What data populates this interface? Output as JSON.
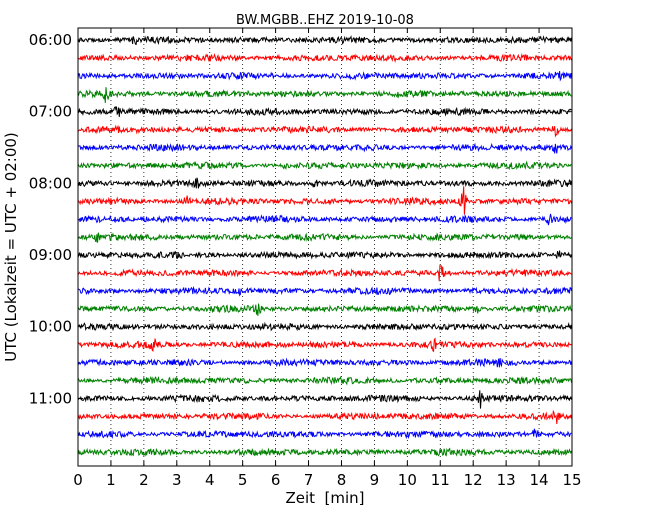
{
  "chart_data": {
    "type": "line",
    "title": "BW.MGBB..EHZ 2019-10-08",
    "xlabel": "Zeit  [min]",
    "ylabel": "UTC (Lokalzeit = UTC + 02:00)",
    "xlim": [
      0,
      15
    ],
    "x_ticks": [
      "0",
      "1",
      "2",
      "3",
      "4",
      "5",
      "6",
      "7",
      "8",
      "9",
      "10",
      "11",
      "12",
      "13",
      "14",
      "15"
    ],
    "y_ticks": [
      "06:00",
      "07:00",
      "08:00",
      "09:00",
      "10:00",
      "11:00"
    ],
    "grid": "vertical dotted lines at each minute",
    "trace_colors": [
      "#000000",
      "#ff0000",
      "#0000ff",
      "#008000"
    ],
    "line_count": 24,
    "start_time": "06:00",
    "minutes_per_line": 15,
    "events": [
      {
        "line": 0,
        "minute": 1.7,
        "amplitude": 0.4
      },
      {
        "line": 2,
        "minute": 14.6,
        "amplitude": 0.4
      },
      {
        "line": 3,
        "minute": 0.85,
        "amplitude": 0.9
      },
      {
        "line": 4,
        "minute": 1.2,
        "amplitude": 0.8
      },
      {
        "line": 5,
        "minute": 14.5,
        "amplitude": 0.9
      },
      {
        "line": 6,
        "minute": 14.5,
        "amplitude": 0.6
      },
      {
        "line": 7,
        "minute": 6.3,
        "amplitude": 0.5
      },
      {
        "line": 8,
        "minute": 3.6,
        "amplitude": 0.6
      },
      {
        "line": 8,
        "minute": 7.2,
        "amplitude": 0.6
      },
      {
        "line": 9,
        "minute": 3.3,
        "amplitude": 0.8
      },
      {
        "line": 9,
        "minute": 11.7,
        "amplitude": 2.0
      },
      {
        "line": 10,
        "minute": 14.3,
        "amplitude": 0.6
      },
      {
        "line": 11,
        "minute": 0.6,
        "amplitude": 0.5
      },
      {
        "line": 12,
        "minute": 14.6,
        "amplitude": 0.5
      },
      {
        "line": 13,
        "minute": 11.0,
        "amplitude": 1.6
      },
      {
        "line": 14,
        "minute": 4.9,
        "amplitude": 0.6
      },
      {
        "line": 15,
        "minute": 5.5,
        "amplitude": 1.1
      },
      {
        "line": 15,
        "minute": 12.1,
        "amplitude": 0.7
      },
      {
        "line": 17,
        "minute": 2.3,
        "amplitude": 0.6
      },
      {
        "line": 17,
        "minute": 10.8,
        "amplitude": 0.5
      },
      {
        "line": 18,
        "minute": 12.8,
        "amplitude": 0.8
      },
      {
        "line": 20,
        "minute": 12.2,
        "amplitude": 1.2
      },
      {
        "line": 21,
        "minute": 14.5,
        "amplitude": 0.8
      },
      {
        "line": 22,
        "minute": 13.9,
        "amplitude": 0.9
      }
    ]
  }
}
